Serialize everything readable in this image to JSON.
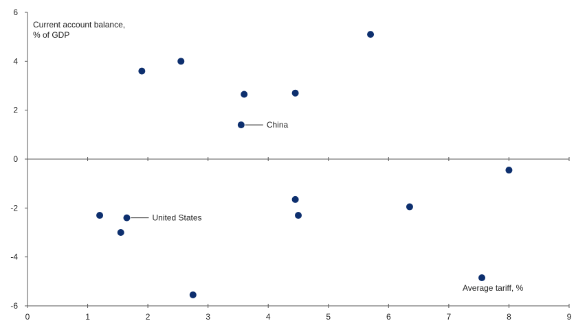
{
  "chart_data": {
    "type": "scatter",
    "xlim": [
      0,
      9
    ],
    "ylim": [
      -6,
      6
    ],
    "x_ticks": [
      0,
      1,
      2,
      3,
      4,
      5,
      6,
      7,
      8,
      9
    ],
    "y_ticks": [
      -6,
      -4,
      -2,
      0,
      2,
      4,
      6
    ],
    "ylabel": "Current account balance, % of GDP",
    "xlabel": "Average tariff, %",
    "grid": false,
    "marker_color": "#0d2f6e",
    "points": [
      {
        "x": 1.9,
        "y": 3.6
      },
      {
        "x": 2.55,
        "y": 4.0
      },
      {
        "x": 5.7,
        "y": 5.1
      },
      {
        "x": 3.6,
        "y": 2.65
      },
      {
        "x": 4.45,
        "y": 2.7
      },
      {
        "x": 3.55,
        "y": 1.4,
        "label": "China"
      },
      {
        "x": 8.0,
        "y": -0.45
      },
      {
        "x": 1.2,
        "y": -2.3
      },
      {
        "x": 1.65,
        "y": -2.4,
        "label": "United States"
      },
      {
        "x": 1.55,
        "y": -3.0
      },
      {
        "x": 4.45,
        "y": -1.65
      },
      {
        "x": 4.5,
        "y": -2.3
      },
      {
        "x": 6.35,
        "y": -1.95
      },
      {
        "x": 7.55,
        "y": -4.85
      },
      {
        "x": 2.75,
        "y": -5.55
      }
    ]
  }
}
